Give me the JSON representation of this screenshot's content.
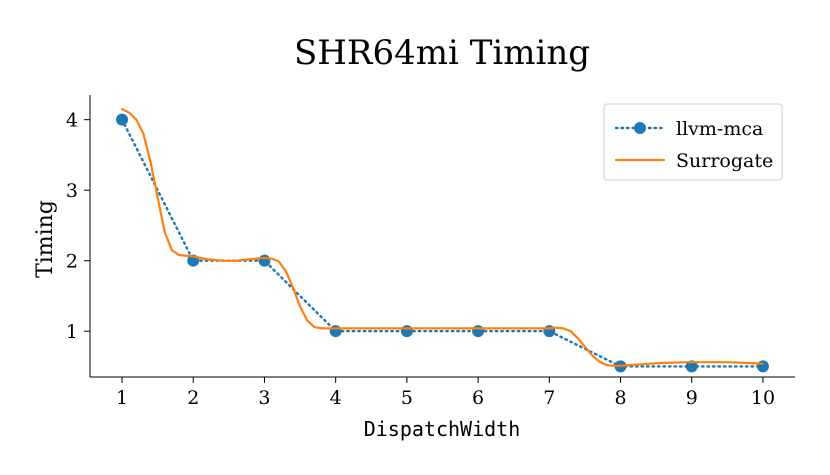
{
  "chart_data": {
    "type": "line",
    "title": "SHR64mi Timing",
    "xlabel": "DispatchWidth",
    "ylabel": "Timing",
    "xlim": [
      0.55,
      10.45
    ],
    "ylim": [
      0.35,
      4.35
    ],
    "xticks": [
      1,
      2,
      3,
      4,
      5,
      6,
      7,
      8,
      9,
      10
    ],
    "yticks": [
      1,
      2,
      3,
      4
    ],
    "grid": false,
    "legend_position": "top-right",
    "series": [
      {
        "name": "llvm-mca",
        "style": "dotted-markers",
        "color": "#1f77b4",
        "x": [
          1,
          2,
          3,
          4,
          5,
          6,
          7,
          8,
          9,
          10
        ],
        "y": [
          4.0,
          2.0,
          2.0,
          1.0,
          1.0,
          1.0,
          1.0,
          0.5,
          0.5,
          0.5
        ]
      },
      {
        "name": "Surrogate",
        "style": "solid",
        "color": "#ff7f0e",
        "x": [
          1.0,
          1.1,
          1.2,
          1.3,
          1.4,
          1.5,
          1.6,
          1.7,
          1.8,
          2.0,
          2.2,
          2.4,
          2.6,
          2.8,
          3.0,
          3.1,
          3.2,
          3.3,
          3.4,
          3.5,
          3.6,
          3.7,
          3.8,
          4.0,
          4.5,
          5.0,
          5.5,
          6.0,
          6.5,
          7.0,
          7.1,
          7.2,
          7.3,
          7.4,
          7.5,
          7.6,
          7.7,
          7.8,
          7.9,
          8.0,
          8.3,
          8.6,
          9.0,
          9.5,
          10.0
        ],
        "y": [
          4.15,
          4.1,
          4.0,
          3.8,
          3.4,
          2.9,
          2.4,
          2.15,
          2.08,
          2.06,
          2.02,
          2.0,
          2.0,
          2.02,
          2.04,
          2.03,
          1.99,
          1.85,
          1.62,
          1.35,
          1.15,
          1.06,
          1.04,
          1.04,
          1.04,
          1.04,
          1.04,
          1.04,
          1.04,
          1.04,
          1.05,
          1.04,
          1.0,
          0.9,
          0.78,
          0.66,
          0.57,
          0.52,
          0.51,
          0.51,
          0.53,
          0.55,
          0.56,
          0.56,
          0.54
        ]
      }
    ]
  }
}
